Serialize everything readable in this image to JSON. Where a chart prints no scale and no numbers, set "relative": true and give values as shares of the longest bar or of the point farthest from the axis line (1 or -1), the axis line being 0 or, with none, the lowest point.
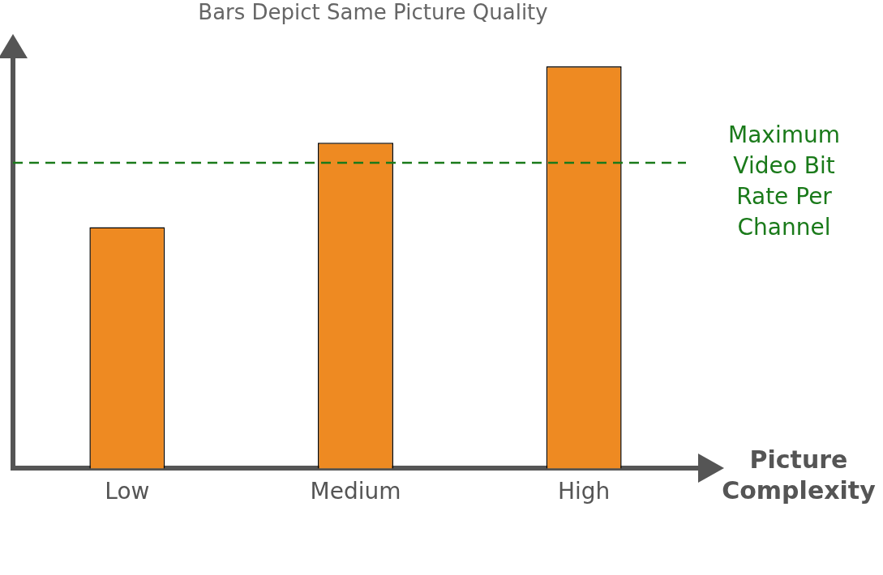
{
  "chart_data": {
    "type": "bar",
    "title": "Bars Depict Same Picture Quality",
    "xlabel": "Picture Complexity",
    "categories": [
      "Low",
      "Medium",
      "High"
    ],
    "relative": true,
    "values": [
      0.6,
      0.81,
      1
    ],
    "color": "#ee8a22",
    "ref_lines": [
      {
        "axis": "y",
        "value": 0.76,
        "label": "Maximum Video Bit Rate Per Channel",
        "color": "#1a7a1a",
        "line_style": "dashed"
      }
    ],
    "grid": false,
    "legend": false
  }
}
